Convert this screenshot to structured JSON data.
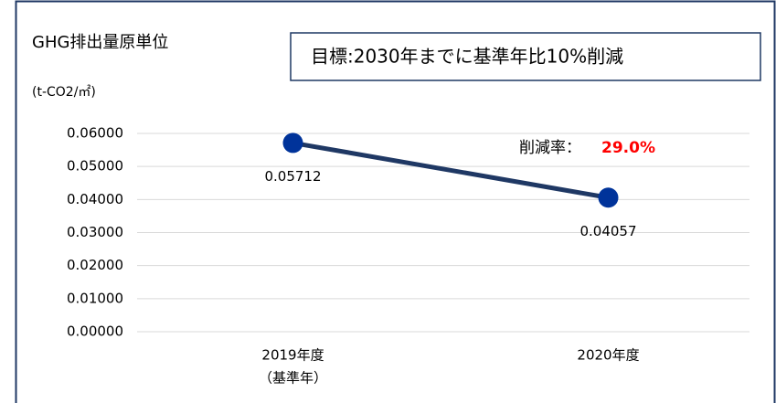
{
  "chart_data": {
    "type": "line",
    "title": "GHG排出量原単位",
    "annotation": "目標:2030年までに基準年比10%削減",
    "y_axis_label": "(t-CO2/㎡)",
    "reduction_label": "削減率：",
    "reduction_rate": "29.0%",
    "categories": [
      "2019年度",
      "2020年度"
    ],
    "category_notes": [
      "（基準年）",
      null
    ],
    "series": [
      {
        "name": "GHG排出量原単位",
        "color": "#1f3864",
        "marker_color": "#00339a",
        "values": [
          0.05712,
          0.04057
        ]
      }
    ],
    "ylim": [
      0,
      0.06
    ],
    "yticks": [
      {
        "value": 0,
        "label": "0.00000"
      },
      {
        "value": 0.01,
        "label": "0.01000"
      },
      {
        "value": 0.02,
        "label": "0.02000"
      },
      {
        "value": 0.03,
        "label": "0.03000"
      },
      {
        "value": 0.04,
        "label": "0.04000"
      },
      {
        "value": 0.05,
        "label": "0.05000"
      },
      {
        "value": 0.06,
        "label": "0.06000"
      }
    ],
    "grid": true
  }
}
